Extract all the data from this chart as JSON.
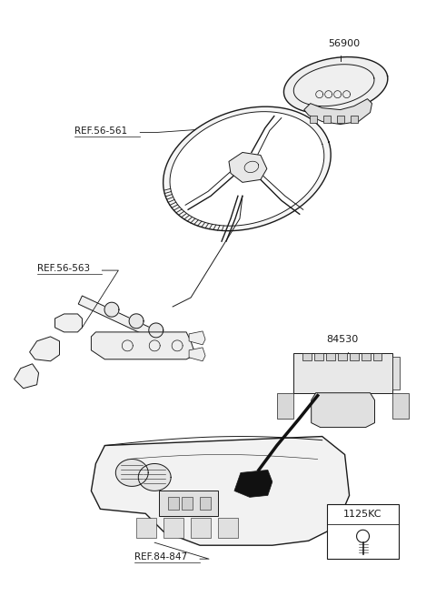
{
  "bg": "#ffffff",
  "tc": "#1a1a1a",
  "figsize": [
    4.8,
    6.56
  ],
  "dpi": 100,
  "labels": {
    "ref_56_561": "REF.56-561",
    "ref_56_563": "REF.56-563",
    "ref_84_847": "REF.84-847",
    "part_56900": "56900",
    "part_84530": "84530",
    "part_code": "1125KC"
  }
}
